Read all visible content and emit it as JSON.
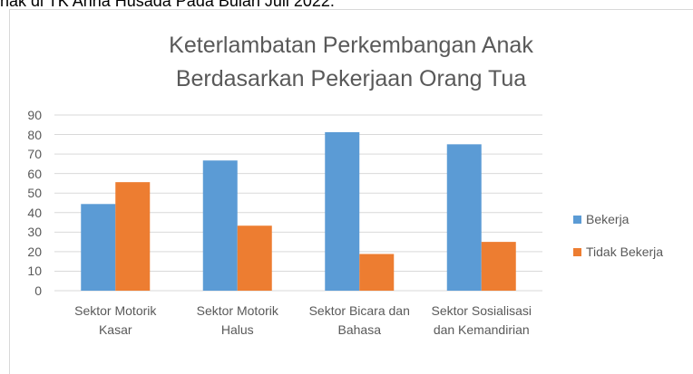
{
  "caption": "nak  di TK Anna Husada Pada Bulan Juli 2022.",
  "chart_data": {
    "type": "bar",
    "title": "Keterlambatan Perkembangan Anak Berdasarkan Pekerjaan Orang Tua",
    "categories": [
      "Sektor Motorik Kasar",
      "Sektor Motorik Halus",
      "Sektor Bicara dan Bahasa",
      "Sektor Sosialisasi dan Kemandirian"
    ],
    "series": [
      {
        "name": "Bekerja",
        "color": "#5b9bd5",
        "values": [
          44.4,
          66.7,
          81.2,
          75
        ]
      },
      {
        "name": "Tidak Bekerja",
        "color": "#ed7d31",
        "values": [
          55.6,
          33.3,
          18.8,
          25
        ]
      }
    ],
    "ylim": [
      0,
      90
    ],
    "yticks": [
      0,
      10,
      20,
      30,
      40,
      50,
      60,
      70,
      80,
      90
    ],
    "grid": true,
    "legend": "right"
  }
}
